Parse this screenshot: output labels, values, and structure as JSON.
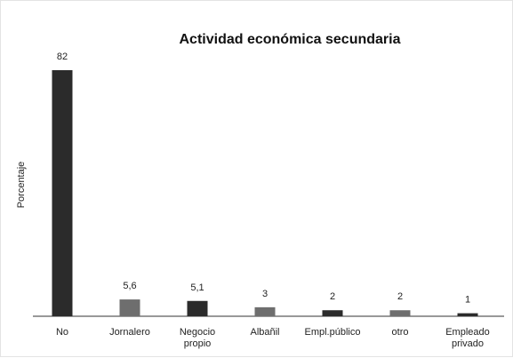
{
  "chart_data": {
    "type": "bar",
    "title": "Actividad económica secundaria",
    "xlabel": "",
    "ylabel": "Porcentaje",
    "ylim": [
      0,
      82
    ],
    "grid": false,
    "legend": "none",
    "categories": [
      "No",
      "Jornalero",
      "Negocio propio",
      "Albañil",
      "Empl.público",
      "otro",
      "Empleado privado"
    ],
    "values": [
      82,
      5.6,
      5.1,
      3,
      2,
      2,
      1
    ],
    "value_labels": [
      "82",
      "5,6",
      "5,1",
      "3",
      "2",
      "2",
      "1"
    ],
    "bar_colors": [
      "#2b2b2b",
      "#6e6e6e",
      "#2b2b2b",
      "#6e6e6e",
      "#2b2b2b",
      "#6e6e6e",
      "#2b2b2b"
    ]
  }
}
